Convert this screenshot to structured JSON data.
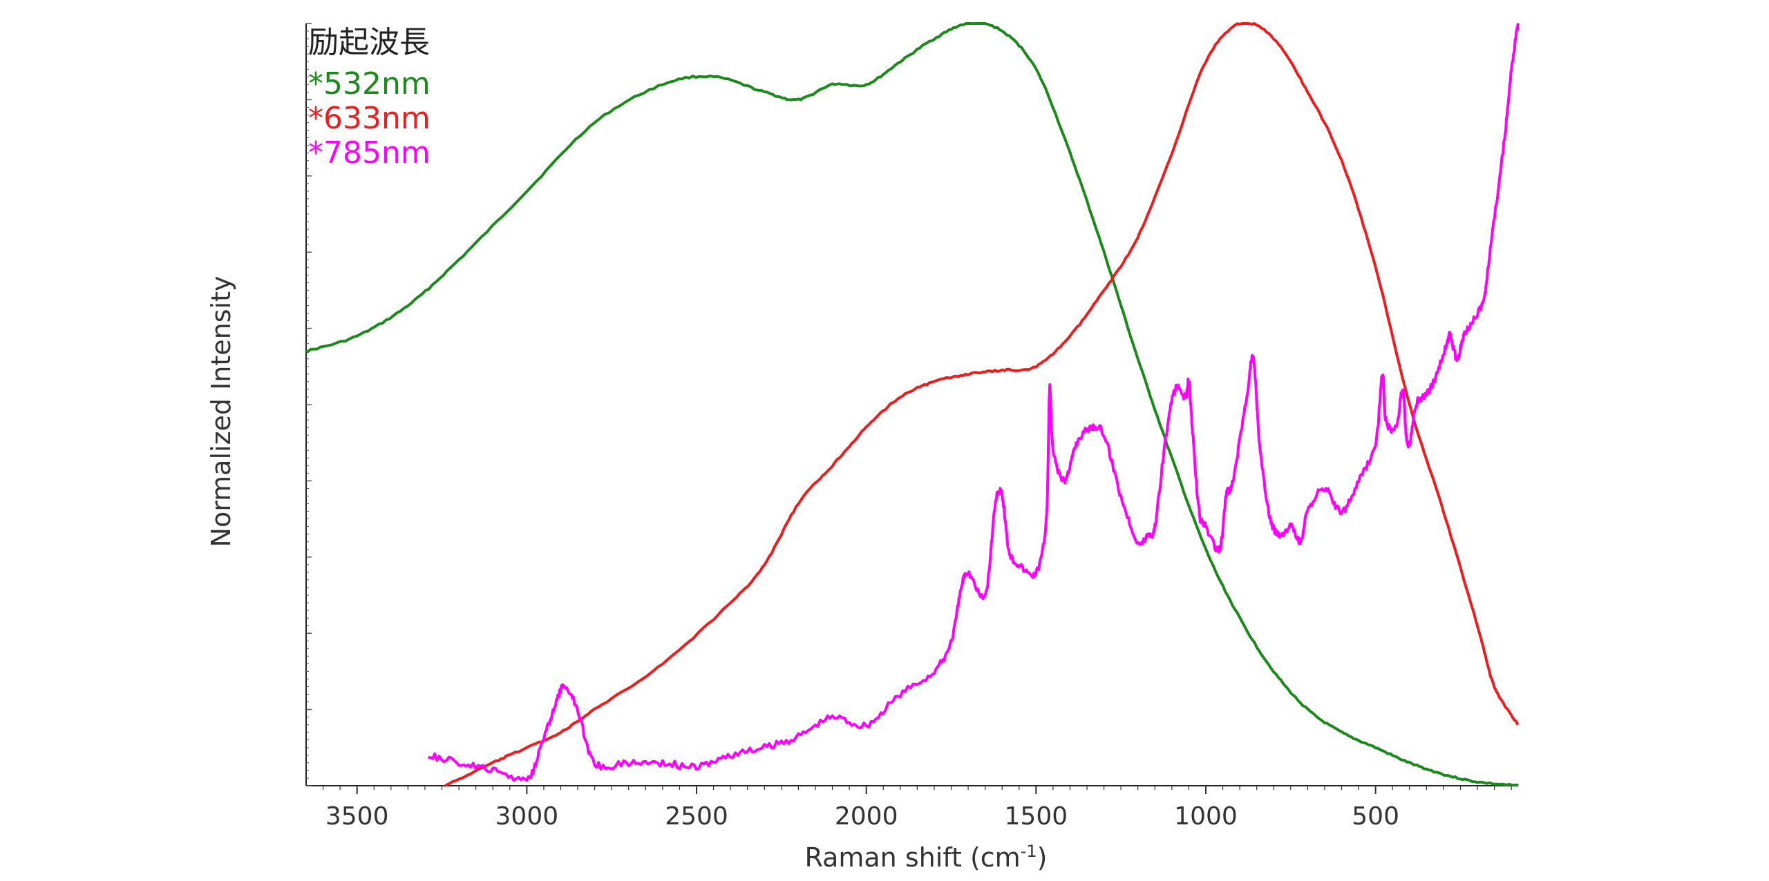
{
  "chart_data": {
    "type": "line",
    "title": "",
    "xlabel": "Raman shift (cm",
    "xlabel_sup": "-1",
    "xlabel_tail": ")",
    "ylabel": "Normalized Intensity",
    "x_reversed": true,
    "xlim": [
      3650,
      80
    ],
    "ylim": [
      0,
      1
    ],
    "x_ticks": [
      3500,
      3000,
      2500,
      2000,
      1500,
      1000,
      500
    ],
    "x_tick_labels": [
      "3500",
      "3000",
      "2500",
      "2000",
      "1500",
      "1000",
      "500"
    ],
    "grid": false,
    "legend_placement": "top-left",
    "legend_title": "励起波長",
    "series": [
      {
        "name": "*532nm",
        "color": "#1a8a1a",
        "x": [
          3650,
          3500,
          3350,
          3200,
          3000,
          2800,
          2600,
          2450,
          2300,
          2200,
          2100,
          2000,
          1900,
          1800,
          1700,
          1600,
          1500,
          1400,
          1300,
          1200,
          1100,
          1000,
          900,
          800,
          700,
          600,
          500,
          400,
          300,
          200,
          80
        ],
        "y": [
          0.57,
          0.59,
          0.63,
          0.69,
          0.78,
          0.87,
          0.92,
          0.93,
          0.91,
          0.9,
          0.92,
          0.92,
          0.95,
          0.98,
          1.0,
          0.99,
          0.94,
          0.83,
          0.7,
          0.56,
          0.43,
          0.31,
          0.22,
          0.15,
          0.1,
          0.07,
          0.05,
          0.03,
          0.015,
          0.005,
          0.0
        ]
      },
      {
        "name": "*633nm",
        "color": "#ee1c1c",
        "x": [
          3240,
          3100,
          3000,
          2900,
          2800,
          2600,
          2400,
          2300,
          2200,
          2100,
          2000,
          1900,
          1800,
          1700,
          1600,
          1500,
          1400,
          1300,
          1200,
          1100,
          1000,
          900,
          800,
          700,
          600,
          500,
          400,
          300,
          200,
          150,
          80
        ],
        "y": [
          0.0,
          0.03,
          0.05,
          0.07,
          0.1,
          0.16,
          0.24,
          0.29,
          0.37,
          0.42,
          0.47,
          0.51,
          0.53,
          0.54,
          0.545,
          0.55,
          0.59,
          0.65,
          0.72,
          0.83,
          0.95,
          1.0,
          0.98,
          0.91,
          0.82,
          0.68,
          0.5,
          0.36,
          0.21,
          0.13,
          0.08
        ]
      },
      {
        "name": "*785nm",
        "color": "#ff00ff",
        "x": [
          3290,
          3200,
          3100,
          3000,
          2960,
          2920,
          2890,
          2850,
          2800,
          2700,
          2600,
          2500,
          2400,
          2300,
          2200,
          2100,
          2000,
          1900,
          1800,
          1750,
          1720,
          1700,
          1650,
          1620,
          1600,
          1580,
          1550,
          1500,
          1470,
          1460,
          1450,
          1420,
          1400,
          1380,
          1340,
          1300,
          1250,
          1200,
          1170,
          1150,
          1120,
          1090,
          1060,
          1050,
          1040,
          1020,
          1000,
          960,
          940,
          920,
          880,
          860,
          840,
          810,
          780,
          750,
          720,
          700,
          650,
          600,
          550,
          500,
          480,
          470,
          440,
          420,
          410,
          400,
          380,
          360,
          340,
          320,
          290,
          280,
          260,
          240,
          200,
          180,
          160,
          120,
          100,
          80
        ],
        "y": [
          0.04,
          0.03,
          0.02,
          0.01,
          0.05,
          0.1,
          0.13,
          0.1,
          0.03,
          0.03,
          0.03,
          0.025,
          0.04,
          0.05,
          0.065,
          0.09,
          0.08,
          0.12,
          0.15,
          0.19,
          0.26,
          0.28,
          0.25,
          0.37,
          0.38,
          0.31,
          0.29,
          0.28,
          0.35,
          0.52,
          0.44,
          0.4,
          0.42,
          0.45,
          0.47,
          0.46,
          0.38,
          0.32,
          0.33,
          0.34,
          0.45,
          0.52,
          0.51,
          0.53,
          0.47,
          0.36,
          0.34,
          0.31,
          0.38,
          0.4,
          0.51,
          0.56,
          0.44,
          0.35,
          0.33,
          0.34,
          0.32,
          0.36,
          0.39,
          0.36,
          0.4,
          0.45,
          0.54,
          0.48,
          0.47,
          0.52,
          0.46,
          0.45,
          0.5,
          0.51,
          0.52,
          0.54,
          0.58,
          0.59,
          0.56,
          0.59,
          0.62,
          0.64,
          0.71,
          0.85,
          0.94,
          1.0
        ]
      }
    ]
  }
}
